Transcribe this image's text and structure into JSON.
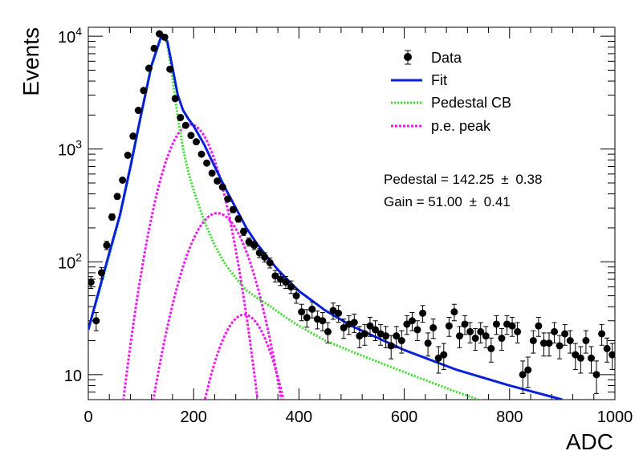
{
  "chart_data": {
    "type": "scatter",
    "xlabel": "ADC",
    "ylabel": "Events",
    "xlim": [
      0,
      1000
    ],
    "ylim": [
      6,
      12000
    ],
    "yscale": "log",
    "xticks": [
      0,
      200,
      400,
      600,
      800,
      1000
    ],
    "ytick_labels": [
      {
        "value": 10,
        "base": "10",
        "exp": ""
      },
      {
        "value": 100,
        "base": "10",
        "exp": "2"
      },
      {
        "value": 1000,
        "base": "10",
        "exp": "3"
      },
      {
        "value": 10000,
        "base": "10",
        "exp": "4"
      }
    ],
    "legend": {
      "placement": "top-right",
      "entries": [
        {
          "label": "Data",
          "style": "marker"
        },
        {
          "label": "Fit",
          "style": "solid"
        },
        {
          "label": "Pedestal CB",
          "style": "dotted-green"
        },
        {
          "label": "p.e. peak",
          "style": "dotted-magenta"
        }
      ]
    },
    "annotations": [
      {
        "name": "pedestal",
        "text": "Pedestal = 142.25",
        "pm": "±",
        "err": "0.38"
      },
      {
        "name": "gain",
        "text": "Gain = 51.00",
        "pm": "±",
        "err": "0.41"
      }
    ],
    "colors": {
      "fit": "#0a1fd8",
      "pedestal": "#33e024",
      "pe": "#ee1aee",
      "data": "#000000"
    },
    "data": {
      "x": [
        5,
        15,
        25,
        35,
        45,
        55,
        65,
        75,
        85,
        95,
        105,
        115,
        125,
        135,
        145,
        155,
        165,
        175,
        185,
        195,
        205,
        215,
        225,
        235,
        245,
        255,
        265,
        275,
        285,
        295,
        305,
        315,
        325,
        335,
        345,
        355,
        365,
        375,
        385,
        395,
        405,
        415,
        425,
        435,
        445,
        455,
        465,
        475,
        485,
        495,
        505,
        515,
        525,
        535,
        545,
        555,
        565,
        575,
        585,
        595,
        605,
        615,
        625,
        635,
        645,
        655,
        665,
        675,
        685,
        695,
        705,
        715,
        725,
        735,
        745,
        755,
        765,
        775,
        785,
        795,
        805,
        815,
        825,
        835,
        845,
        855,
        865,
        875,
        885,
        895,
        905,
        915,
        925,
        935,
        945,
        955,
        965,
        975,
        985,
        995
      ],
      "y": [
        66,
        30,
        80,
        140,
        250,
        380,
        530,
        880,
        1300,
        2200,
        3300,
        5200,
        7800,
        10500,
        9800,
        5100,
        2800,
        1900,
        1620,
        1320,
        1160,
        900,
        750,
        610,
        520,
        460,
        360,
        290,
        240,
        185,
        150,
        140,
        120,
        110,
        98,
        75,
        70,
        66,
        60,
        50,
        36,
        32,
        38,
        31,
        30,
        24,
        37,
        35,
        26,
        28,
        29,
        22,
        23,
        27,
        25,
        23,
        22,
        18,
        22,
        20,
        28,
        30,
        25,
        35,
        19,
        26,
        14,
        15,
        27,
        36,
        22,
        28,
        24,
        21,
        24,
        22,
        17,
        28,
        21,
        28,
        27,
        24,
        10,
        11,
        20,
        27,
        19,
        19,
        24,
        18,
        23,
        20,
        15,
        14,
        20,
        14,
        10,
        23,
        17,
        15
      ],
      "err": [
        8,
        5.5,
        9,
        12,
        16,
        20,
        23,
        30,
        36,
        47,
        57,
        72,
        88,
        102,
        99,
        71,
        53,
        44,
        40,
        36,
        34,
        30,
        27,
        25,
        23,
        21,
        19,
        17,
        15.5,
        13.6,
        12.2,
        11.8,
        11,
        10.5,
        9.9,
        8.7,
        8.4,
        8.1,
        7.7,
        7.1,
        6,
        5.7,
        6.2,
        5.6,
        5.5,
        4.9,
        6.1,
        5.9,
        5.1,
        5.3,
        5.4,
        4.7,
        4.8,
        5.2,
        5,
        4.8,
        4.7,
        4.2,
        4.7,
        4.5,
        5.3,
        5.5,
        5,
        5.9,
        4.4,
        5.1,
        3.7,
        3.9,
        5.2,
        6,
        4.7,
        5.3,
        4.9,
        4.6,
        4.9,
        4.7,
        4.1,
        5.3,
        4.6,
        5.3,
        5.2,
        4.9,
        3.2,
        3.3,
        4.5,
        5.2,
        4.4,
        4.4,
        4.9,
        4.2,
        4.8,
        4.5,
        3.9,
        3.7,
        4.5,
        3.7,
        3.2,
        4.8,
        4.1,
        3.9
      ]
    },
    "curves": {
      "fit": {
        "x": [
          0,
          20,
          40,
          60,
          80,
          100,
          120,
          140,
          150,
          160,
          170,
          180,
          190,
          200,
          220,
          240,
          260,
          280,
          300,
          320,
          340,
          360,
          380,
          400,
          450,
          500,
          600,
          700,
          800,
          900
        ],
        "y": [
          25,
          55,
          120,
          260,
          700,
          2000,
          5500,
          10500,
          9000,
          5200,
          3000,
          2200,
          1850,
          1600,
          1100,
          700,
          450,
          300,
          200,
          145,
          110,
          85,
          68,
          55,
          37,
          27,
          16.5,
          11,
          8,
          6
        ]
      },
      "pedestal": {
        "x": [
          0,
          20,
          40,
          60,
          80,
          100,
          120,
          140,
          150,
          160,
          170,
          180,
          190,
          200,
          220,
          240,
          260,
          280,
          300,
          320,
          340,
          360,
          380,
          400,
          450,
          500,
          600,
          700,
          800
        ],
        "y": [
          25,
          52,
          115,
          250,
          680,
          1950,
          5400,
          10300,
          8600,
          4200,
          1900,
          1000,
          620,
          430,
          230,
          140,
          95,
          72,
          56,
          48,
          42,
          36,
          31,
          27,
          20,
          16,
          10.5,
          7,
          4.8
        ]
      },
      "pe": [
        {
          "mean": 194,
          "sigma": 38,
          "amp": 1650
        },
        {
          "mean": 245,
          "sigma": 44,
          "amp": 270
        },
        {
          "mean": 296,
          "sigma": 40,
          "amp": 34
        }
      ]
    }
  }
}
